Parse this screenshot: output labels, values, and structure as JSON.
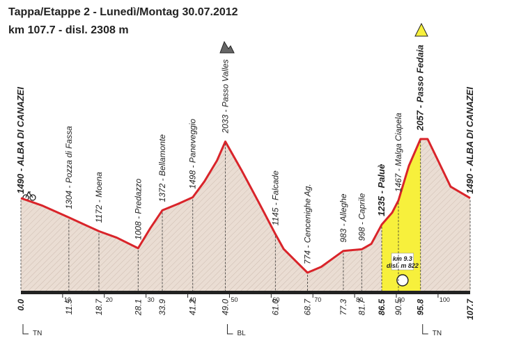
{
  "chart_data": {
    "type": "profile",
    "title": "Tappa/Etappe 2 - Lunedì/Montag  30.07.2012",
    "subtitle": "km 107.7 - disl. 2308 m",
    "xlim": [
      0,
      107.7
    ],
    "ylim": [
      600,
      2200
    ],
    "xticks": [
      10,
      20,
      30,
      40,
      50,
      60,
      70,
      80,
      90,
      100
    ],
    "waypoints": [
      {
        "km": {
          "value": 0,
          "label": "0.0"
        },
        "elevation": 1490,
        "label": "1490 - ALBA DI CANAZEI",
        "emphasis": true
      },
      {
        "km": 11.5,
        "elevation": 1304,
        "label": "1304 - Pozza di Fassa"
      },
      {
        "km": 18.7,
        "elevation": 1172,
        "label": "1172 - Moena"
      },
      {
        "km": 28.1,
        "elevation": 1008,
        "label": "1008 - Predazzo"
      },
      {
        "km": 33.9,
        "elevation": 1372,
        "label": "1372 - Bellamonte"
      },
      {
        "km": 41.2,
        "elevation": 1498,
        "label": "1498 - Paneveggio"
      },
      {
        "km": {
          "value": 49,
          "label": "49.0"
        },
        "elevation": 2033,
        "label": "2033 - Passo Valles"
      },
      {
        "km": {
          "value": 61,
          "label": "61.0"
        },
        "elevation": 1145,
        "label": "1145 - Falcade"
      },
      {
        "km": 68.7,
        "elevation": 774,
        "label": "774 - Cencenighe Ag."
      },
      {
        "km": 77.3,
        "elevation": 983,
        "label": "983 - Alleghe"
      },
      {
        "km": 81.7,
        "elevation": 998,
        "label": "998 - Caprile"
      },
      {
        "km": 86.5,
        "elevation": 1235,
        "label": "1235 - Paluè",
        "emphasis": true
      },
      {
        "km": 90.5,
        "elevation": 1467,
        "label": "1467 - Malga Ciapela"
      },
      {
        "km": 95.8,
        "elevation": 2057,
        "label": "2057 - Passo Fedaia",
        "emphasis": true
      },
      {
        "km": 107.7,
        "elevation": 1490,
        "label": "1490 - ALBA DI CANAZEI",
        "emphasis": true
      }
    ],
    "profile": {
      "x": [
        0,
        5,
        11.5,
        15,
        18.7,
        23,
        28.1,
        31,
        33.9,
        38,
        41.2,
        44,
        47,
        49,
        53,
        57,
        61,
        63,
        66,
        68.7,
        72,
        77.3,
        81.7,
        84,
        86.5,
        89,
        90.5,
        93,
        95.8,
        97.5,
        100,
        103,
        107.7
      ],
      "y": [
        1490,
        1420,
        1304,
        1240,
        1172,
        1110,
        1008,
        1200,
        1372,
        1440,
        1498,
        1650,
        1850,
        2033,
        1750,
        1450,
        1145,
        1000,
        880,
        774,
        830,
        983,
        998,
        1050,
        1235,
        1350,
        1467,
        1800,
        2057,
        2057,
        1850,
        1600,
        1490
      ]
    },
    "climb": {
      "start": 86.5,
      "end": 95.8,
      "length_label": "km 9.3",
      "gain_label": "disl. m 822",
      "color": "#f7f03c"
    },
    "line_color": "#d9242a",
    "fill_color": "#eaddd3",
    "regions": [
      "TN",
      "BL",
      "TN"
    ]
  }
}
